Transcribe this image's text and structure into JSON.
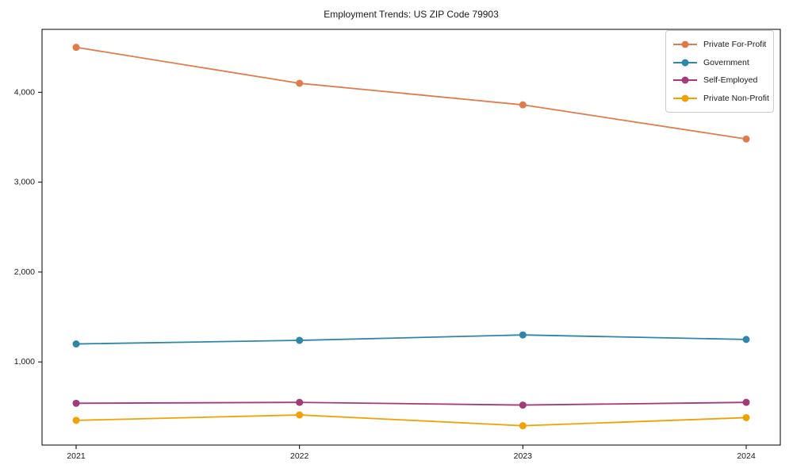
{
  "chart_data": {
    "type": "line",
    "title": "Employment Trends: US ZIP Code 79903",
    "xlabel": "",
    "ylabel": "",
    "categories": [
      "2021",
      "2022",
      "2023",
      "2024"
    ],
    "series": [
      {
        "name": "Private For-Profit",
        "color": "#E07B4C",
        "values": [
          4500,
          4100,
          3860,
          3480
        ]
      },
      {
        "name": "Government",
        "color": "#2E86A8",
        "values": [
          1200,
          1240,
          1300,
          1250
        ]
      },
      {
        "name": "Self-Employed",
        "color": "#A33A7C",
        "values": [
          540,
          550,
          520,
          550
        ]
      },
      {
        "name": "Private Non-Profit",
        "color": "#F2A104",
        "values": [
          350,
          410,
          290,
          380
        ]
      }
    ],
    "ylim": [
      75,
      4700
    ],
    "yticks": [
      1000,
      2000,
      3000,
      4000
    ],
    "ytick_labels": [
      "1,000",
      "2,000",
      "3,000",
      "4,000"
    ],
    "grid": false,
    "legend_position": "upper right",
    "marker": "circle",
    "axis_color": "#000000",
    "text_color": "#1a1a1a"
  }
}
